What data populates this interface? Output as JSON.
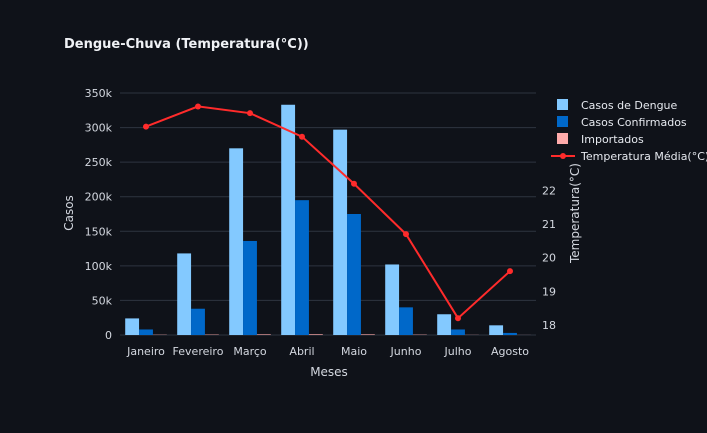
{
  "chart_data": {
    "type": "bar",
    "title": "Dengue-Chuva (Temperatura(°C))",
    "xlabel": "Meses",
    "ylabel": "Casos",
    "y2label": "Temperatura(°C)",
    "categories": [
      "Janeiro",
      "Fevereiro",
      "Março",
      "Abril",
      "Maio",
      "Junho",
      "Julho",
      "Agosto"
    ],
    "ylim": [
      0,
      350000
    ],
    "yticks": [
      0,
      50000,
      100000,
      150000,
      200000,
      250000,
      300000,
      350000
    ],
    "ytick_labels": [
      "0",
      "50k",
      "100k",
      "150k",
      "200k",
      "250k",
      "300k",
      "350k"
    ],
    "y2lim": [
      17.7,
      24.9
    ],
    "y2ticks": [
      18,
      19,
      20,
      21,
      22
    ],
    "y2tick_labels": [
      "18",
      "19",
      "20",
      "21",
      "22"
    ],
    "grid": true,
    "legend_position": "top-right",
    "series": [
      {
        "name": "Casos de Dengue",
        "kind": "bar",
        "axis": "y",
        "color": "#83c9ff",
        "values": [
          24000,
          118000,
          270000,
          333000,
          297000,
          102000,
          30000,
          14000
        ]
      },
      {
        "name": "Casos Confirmados",
        "kind": "bar",
        "axis": "y",
        "color": "#0068c9",
        "values": [
          8000,
          38000,
          136000,
          195000,
          175000,
          40000,
          8000,
          3000
        ]
      },
      {
        "name": "Importados",
        "kind": "bar",
        "axis": "y",
        "color": "#ffabab",
        "values": [
          400,
          600,
          900,
          1000,
          900,
          500,
          200,
          100
        ]
      },
      {
        "name": "Temperatura Média(°C)",
        "kind": "line",
        "axis": "y2",
        "color": "#ff2b2b",
        "values": [
          23.9,
          24.5,
          24.3,
          23.6,
          22.2,
          20.7,
          18.2,
          19.6
        ]
      }
    ]
  },
  "legend": {
    "items": [
      {
        "label": "Casos de Dengue",
        "color": "#83c9ff",
        "kind": "bar"
      },
      {
        "label": "Casos Confirmados",
        "color": "#0068c9",
        "kind": "bar"
      },
      {
        "label": "Importados",
        "color": "#ffabab",
        "kind": "bar"
      },
      {
        "label": "Temperatura Média(°C)",
        "color": "#ff2b2b",
        "kind": "line"
      }
    ]
  },
  "colors": {
    "background": "#0f1219",
    "grid": "#2e3440",
    "axis_text": "#d4d8e0"
  }
}
